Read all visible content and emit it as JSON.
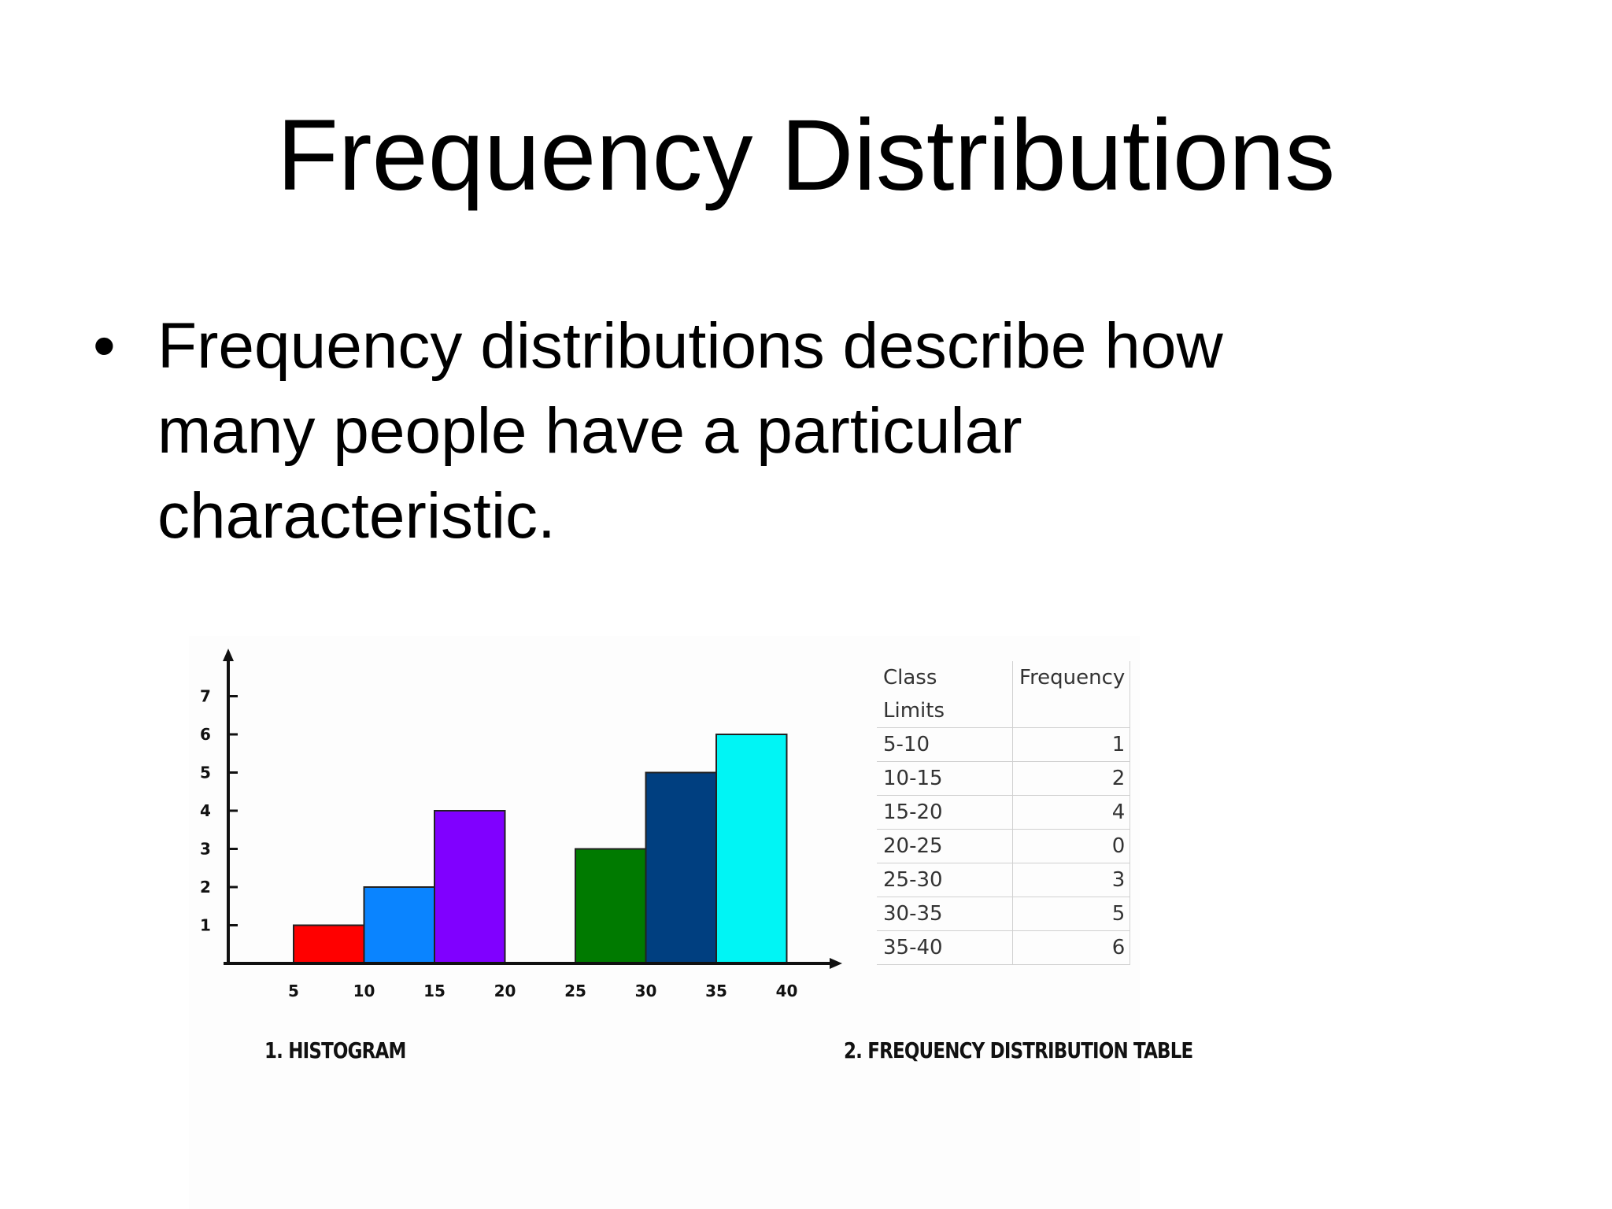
{
  "slide": {
    "title": "Frequency Distributions",
    "bullet_symbol": "•",
    "bullet_lines": [
      "Frequency distributions describe how",
      "many people have a particular",
      "characteristic."
    ]
  },
  "chart_data": {
    "type": "bar",
    "title": "",
    "caption": "1. HISTOGRAM",
    "x_ticks": [
      "5",
      "10",
      "15",
      "20",
      "25",
      "30",
      "35",
      "40"
    ],
    "y_ticks": [
      "1",
      "2",
      "3",
      "4",
      "5",
      "6",
      "7"
    ],
    "ylim": [
      0,
      7
    ],
    "xlim": [
      5,
      40
    ],
    "bins": [
      {
        "from": 5,
        "to": 10,
        "value": 1,
        "color": "#ff0000"
      },
      {
        "from": 10,
        "to": 15,
        "value": 2,
        "color": "#0a84ff"
      },
      {
        "from": 15,
        "to": 20,
        "value": 4,
        "color": "#8000ff"
      },
      {
        "from": 20,
        "to": 25,
        "value": 0,
        "color": "#ffffff"
      },
      {
        "from": 25,
        "to": 30,
        "value": 3,
        "color": "#007a00"
      },
      {
        "from": 30,
        "to": 35,
        "value": 5,
        "color": "#003f80"
      },
      {
        "from": 35,
        "to": 40,
        "value": 6,
        "color": "#00f5f5"
      }
    ]
  },
  "table": {
    "caption": "2. FREQUENCY DISTRIBUTION TABLE",
    "header": [
      "Class",
      "Frequency"
    ],
    "header_line2": [
      "Limits",
      ""
    ],
    "rows": [
      [
        "5-10",
        "1"
      ],
      [
        "10-15",
        "2"
      ],
      [
        "15-20",
        "4"
      ],
      [
        "20-25",
        "0"
      ],
      [
        "25-30",
        "3"
      ],
      [
        "30-35",
        "5"
      ],
      [
        "35-40",
        "6"
      ]
    ]
  }
}
